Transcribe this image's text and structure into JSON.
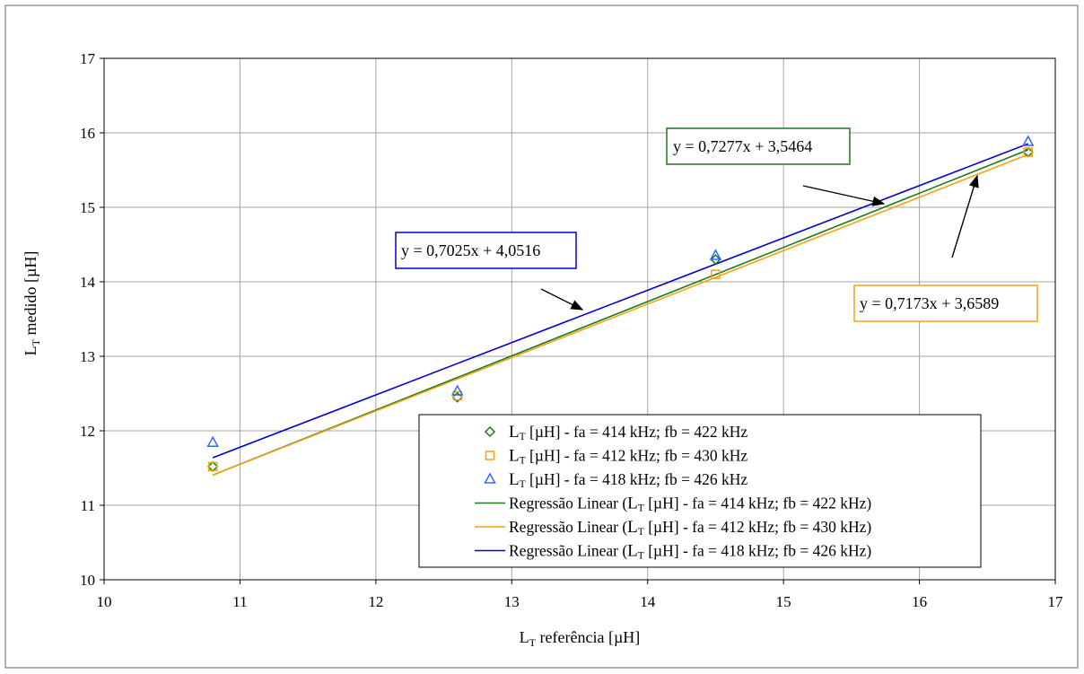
{
  "chart_data": {
    "type": "scatter",
    "title": "",
    "xlabel": {
      "main": "L",
      "sub": "T",
      "rest": " referência [µH]"
    },
    "ylabel": {
      "main": "L",
      "sub": "T",
      "rest": " medido [µH]"
    },
    "xlim": [
      10,
      17
    ],
    "ylim": [
      10,
      17
    ],
    "xticks": [
      "10",
      "11",
      "12",
      "13",
      "14",
      "15",
      "16",
      "17"
    ],
    "yticks": [
      "10",
      "11",
      "12",
      "13",
      "14",
      "15",
      "16",
      "17"
    ],
    "grid": true,
    "legend_position": "bottom-right",
    "series": [
      {
        "name": "fa = 414 kHz; fb = 422 kHz",
        "marker": "diamond",
        "color": "#1a7a1a",
        "x": [
          10.8,
          12.6,
          14.5,
          16.8
        ],
        "y": [
          11.52,
          12.45,
          14.3,
          15.74
        ]
      },
      {
        "name": "fa = 412 kHz; fb = 430 kHz",
        "marker": "square",
        "color": "#f5a214",
        "x": [
          10.8,
          12.6,
          14.5,
          16.8
        ],
        "y": [
          11.52,
          12.47,
          14.1,
          15.74
        ]
      },
      {
        "name": "fa = 418 kHz; fb = 426 kHz",
        "marker": "triangle",
        "color": "#3366ff",
        "x": [
          10.8,
          12.6,
          14.5,
          16.8
        ],
        "y": [
          11.84,
          12.53,
          14.35,
          15.88
        ]
      }
    ],
    "trendlines": [
      {
        "color": "#1a7a1a",
        "slope": 0.7277,
        "intercept": 3.5464,
        "x_range": [
          10.8,
          16.8
        ]
      },
      {
        "color": "#f5a214",
        "slope": 0.7173,
        "intercept": 3.6589,
        "x_range": [
          10.8,
          16.8
        ]
      },
      {
        "color": "#0000cc",
        "slope": 0.7025,
        "intercept": 4.0516,
        "x_range": [
          10.8,
          16.8
        ]
      }
    ],
    "legend": {
      "entries": [
        {
          "kind": "marker",
          "marker": "diamond",
          "color": "#1a7a1a",
          "prefix": "",
          "main": "L",
          "sub": "T",
          "rest": " [µH] - fa = 414 kHz; fb = 422 kHz",
          "suffix": ""
        },
        {
          "kind": "marker",
          "marker": "square",
          "color": "#f5a214",
          "prefix": "",
          "main": "L",
          "sub": "T",
          "rest": " [µH] - fa = 412 kHz; fb = 430 kHz",
          "suffix": ""
        },
        {
          "kind": "marker",
          "marker": "triangle",
          "color": "#3366ff",
          "prefix": "",
          "main": "L",
          "sub": "T",
          "rest": " [µH] - fa = 418 kHz; fb = 426 kHz",
          "suffix": ""
        },
        {
          "kind": "line",
          "color": "#1a7a1a",
          "prefix": "Regressão Linear (",
          "main": "L",
          "sub": "T",
          "rest": " [µH] - fa = 414 kHz; fb = 422 kHz",
          "suffix": ")"
        },
        {
          "kind": "line",
          "color": "#f5a214",
          "prefix": "Regressão Linear (",
          "main": "L",
          "sub": "T",
          "rest": " [µH] - fa = 412 kHz; fb = 430 kHz",
          "suffix": ")"
        },
        {
          "kind": "line",
          "color": "#0000cc",
          "prefix": "Regressão Linear (",
          "main": "L",
          "sub": "T",
          "rest": " [µH] - fa = 418 kHz; fb = 426 kHz",
          "suffix": ")"
        }
      ]
    },
    "annotations": [
      {
        "text": "y = 0,7277x + 3,5464",
        "border": "#1a7a1a"
      },
      {
        "text": "y = 0,7025x + 4,0516",
        "border": "#0000cc"
      },
      {
        "text": "y = 0,7173x + 3,6589",
        "border": "#f5a214"
      }
    ]
  }
}
